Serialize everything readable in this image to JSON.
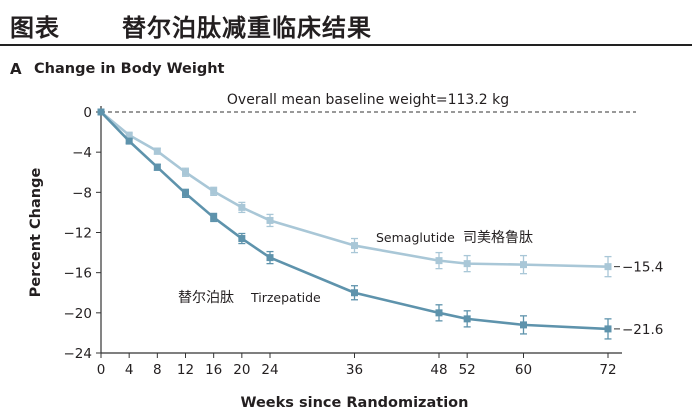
{
  "header": {
    "label": "图表",
    "title": "替尔泊肽减重临床结果"
  },
  "panel": {
    "letter": "A",
    "title": "Change in Body Weight"
  },
  "chart_data": {
    "type": "line",
    "ylabel": "Percent Change",
    "xlabel": "Weeks since Randomization",
    "xlim": [
      0,
      72
    ],
    "ylim": [
      -24,
      0
    ],
    "x_ticks": [
      "0",
      "4",
      "8",
      "12",
      "16",
      "20",
      "24",
      "36",
      "48",
      "52",
      "60",
      "72"
    ],
    "y_ticks": [
      "0",
      "−4",
      "−8",
      "−12",
      "−16",
      "−20",
      "−24"
    ],
    "baseline_annotation": "Overall mean baseline weight=113.2 kg",
    "series": [
      {
        "name": "Semaglutide",
        "name_cn": "司美格鲁肽",
        "end_label": "−15.4",
        "color": "#a9c7d7",
        "x": [
          0,
          4,
          8,
          12,
          16,
          20,
          24,
          36,
          48,
          52,
          60,
          72
        ],
        "y": [
          0,
          -2.3,
          -3.9,
          -6.0,
          -7.9,
          -9.5,
          -10.8,
          -13.3,
          -14.8,
          -15.1,
          -15.2,
          -15.4
        ],
        "err": [
          0,
          0.2,
          0.3,
          0.4,
          0.4,
          0.5,
          0.6,
          0.7,
          0.8,
          0.8,
          0.9,
          1.0
        ]
      },
      {
        "name": "Tirzepatide",
        "name_cn": "替尔泊肽",
        "end_label": "−21.6",
        "color": "#5e93ac",
        "x": [
          0,
          4,
          8,
          12,
          16,
          20,
          24,
          36,
          48,
          52,
          60,
          72
        ],
        "y": [
          0,
          -2.9,
          -5.5,
          -8.1,
          -10.5,
          -12.6,
          -14.5,
          -18.0,
          -20.0,
          -20.6,
          -21.2,
          -21.6
        ],
        "err": [
          0,
          0.2,
          0.3,
          0.4,
          0.4,
          0.5,
          0.6,
          0.7,
          0.8,
          0.8,
          0.9,
          1.0
        ]
      }
    ]
  }
}
